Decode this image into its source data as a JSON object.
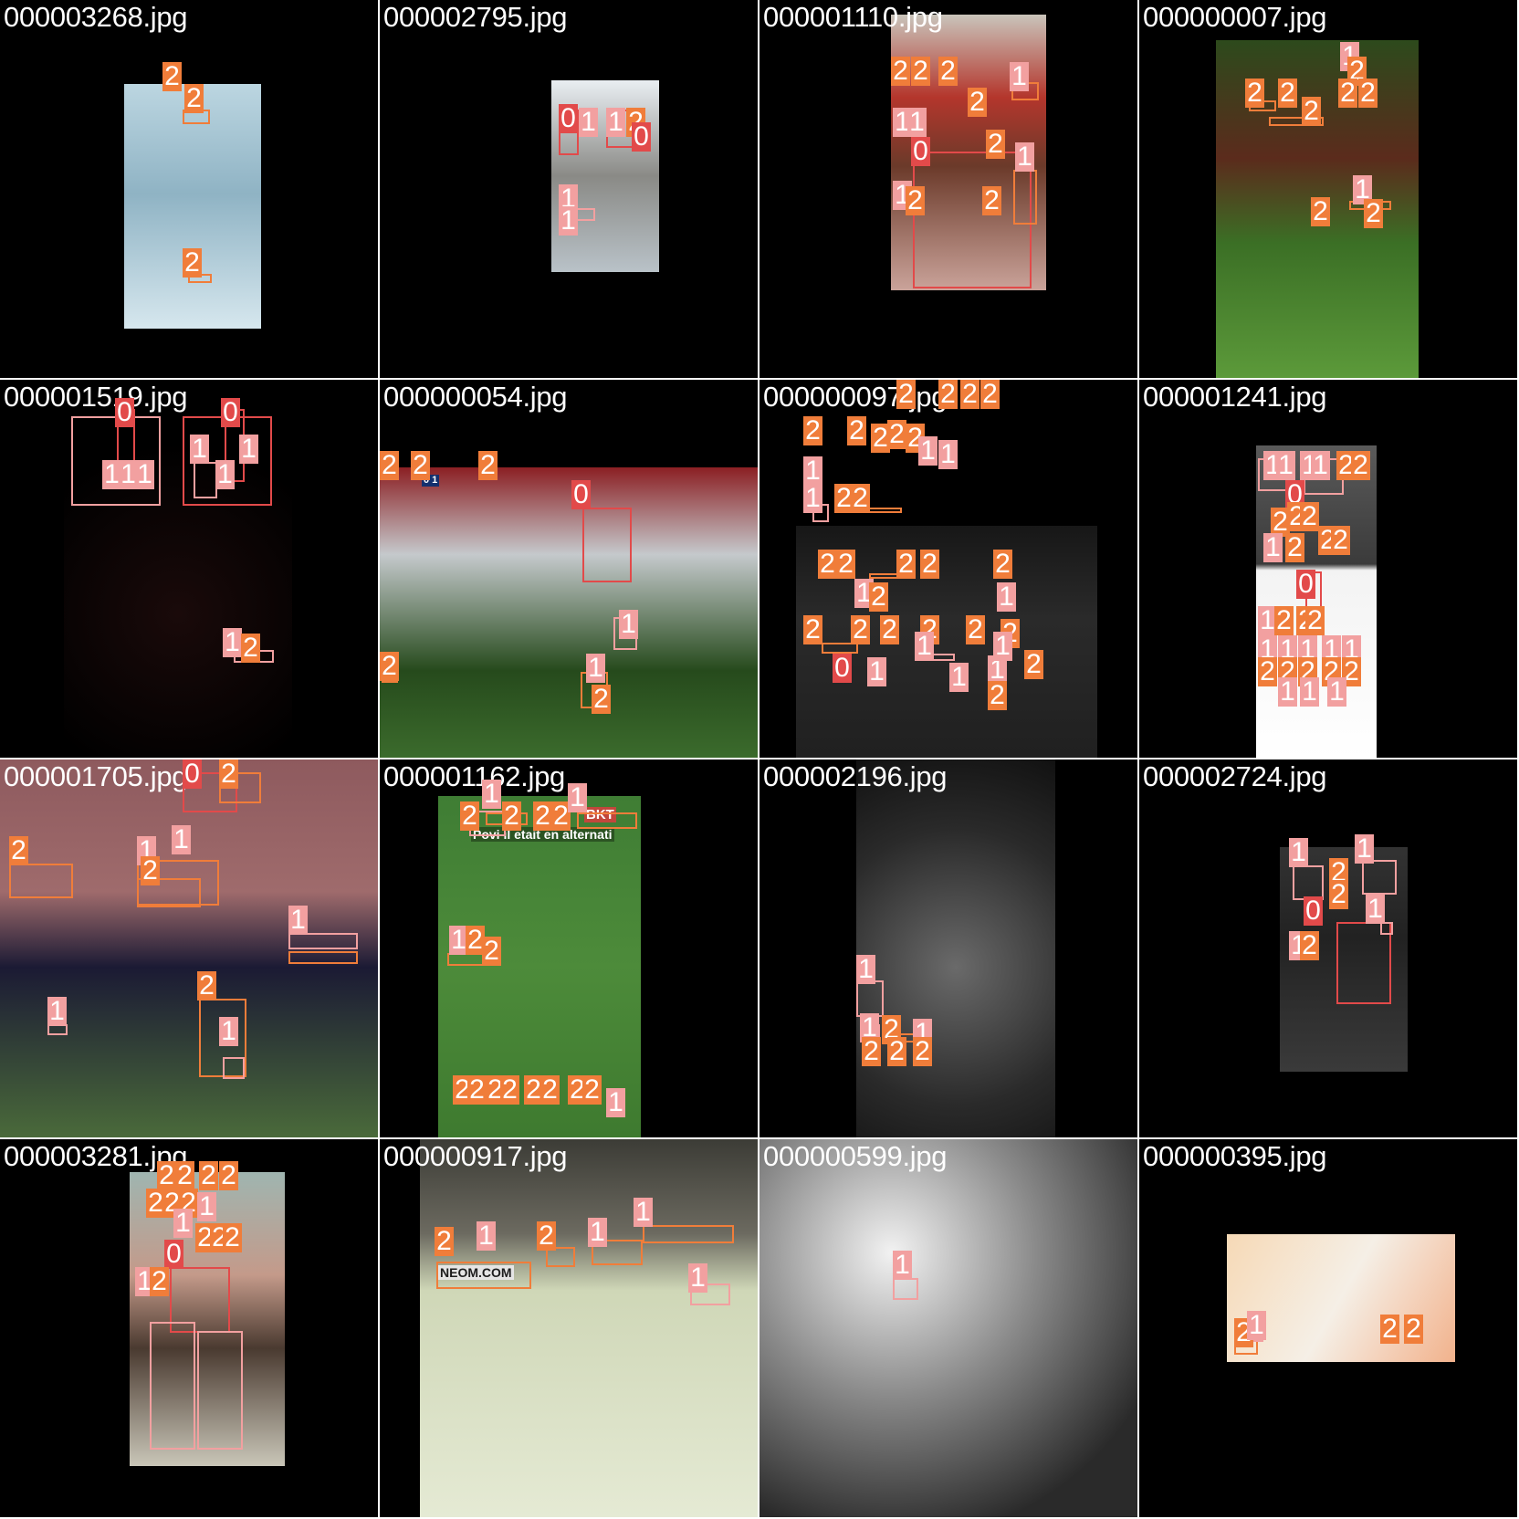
{
  "colors": {
    "class_0": "#e24a4a",
    "class_1": "#f2a0a0",
    "class_2": "#f07d3a",
    "tile_background": "#000000",
    "filename_text": "#ffffff"
  },
  "tiles": [
    {
      "filename": "000003268.jpg"
    },
    {
      "filename": "000002795.jpg"
    },
    {
      "filename": "000001110.jpg"
    },
    {
      "filename": "000000007.jpg"
    },
    {
      "filename": "000001519.jpg"
    },
    {
      "filename": "000000054.jpg"
    },
    {
      "filename": "000000097.jpg"
    },
    {
      "filename": "000001241.jpg"
    },
    {
      "filename": "000001705.jpg"
    },
    {
      "filename": "000001162.jpg"
    },
    {
      "filename": "000002196.jpg"
    },
    {
      "filename": "000002724.jpg"
    },
    {
      "filename": "000003281.jpg"
    },
    {
      "filename": "000000917.jpg"
    },
    {
      "filename": "000000599.jpg"
    },
    {
      "filename": "000000395.jpg"
    }
  ],
  "visible_text": {
    "bkt_1": "BKT",
    "bkt_2": "BKT",
    "caption_words": [
      "Povi",
      "il",
      "etait",
      "en",
      "alternati"
    ],
    "scoreboard": "0 1",
    "neom": "NEOM.COM"
  }
}
